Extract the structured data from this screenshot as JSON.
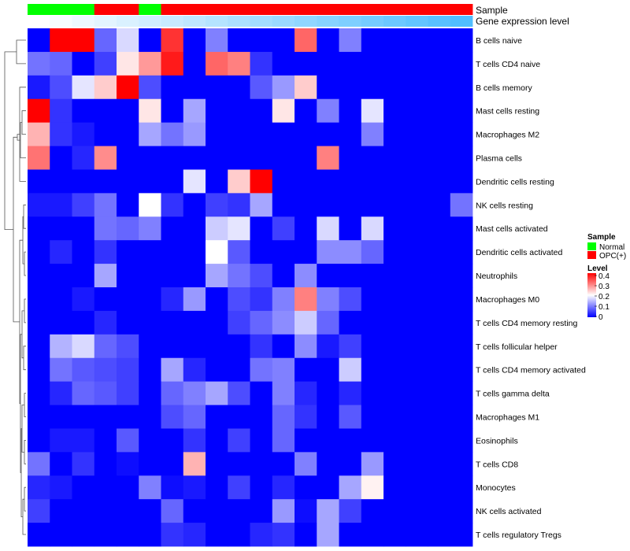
{
  "chart_data": {
    "type": "heatmap",
    "title": "",
    "annotation_rows": [
      {
        "label": "Sample",
        "values": [
          "Normal",
          "Normal",
          "Normal",
          "OPC(+)",
          "OPC(+)",
          "Normal",
          "OPC(+)",
          "OPC(+)",
          "OPC(+)",
          "OPC(+)",
          "OPC(+)",
          "OPC(+)",
          "OPC(+)",
          "OPC(+)",
          "OPC(+)",
          "OPC(+)",
          "OPC(+)",
          "OPC(+)",
          "OPC(+)",
          "OPC(+)"
        ]
      },
      {
        "label": "Gene expression level",
        "gradient": true
      }
    ],
    "rows": [
      "B cells naive",
      "T cells CD4 naive",
      "B cells memory",
      "Mast cells resting",
      "Macrophages M2",
      "Plasma cells",
      "Dendritic cells resting",
      "NK cells resting",
      "Mast cells activated",
      "Dendritic cells activated",
      "Neutrophils",
      "Macrophages M0",
      "T cells CD4 memory resting",
      "T cells follicular helper",
      "T cells CD4 memory activated",
      "T cells gamma delta",
      "Macrophages M1",
      "Eosinophils",
      "T cells CD8",
      "Monocytes",
      "NK cells activated",
      "T cells regulatory  Tregs"
    ],
    "n_columns": 20,
    "values": [
      [
        0.0,
        0.4,
        0.4,
        0.08,
        0.17,
        0.0,
        0.36,
        0.0,
        0.1,
        0.0,
        0.0,
        0.0,
        0.32,
        0.0,
        0.1,
        0.0,
        0.0,
        0.0,
        0.0,
        0.0
      ],
      [
        0.09,
        0.08,
        0.0,
        0.05,
        0.22,
        0.28,
        0.38,
        0.0,
        0.32,
        0.3,
        0.04,
        0.0,
        0.0,
        0.0,
        0.0,
        0.0,
        0.0,
        0.0,
        0.0,
        0.0
      ],
      [
        0.02,
        0.06,
        0.18,
        0.24,
        0.4,
        0.06,
        0.0,
        0.0,
        0.0,
        0.0,
        0.07,
        0.12,
        0.24,
        0.0,
        0.0,
        0.0,
        0.0,
        0.0,
        0.0,
        0.0
      ],
      [
        0.4,
        0.04,
        0.0,
        0.0,
        0.0,
        0.22,
        0.0,
        0.13,
        0.0,
        0.0,
        0.0,
        0.22,
        0.0,
        0.1,
        0.0,
        0.18,
        0.0,
        0.0,
        0.0,
        0.0
      ],
      [
        0.26,
        0.04,
        0.02,
        0.0,
        0.0,
        0.13,
        0.09,
        0.12,
        0.0,
        0.0,
        0.0,
        0.0,
        0.0,
        0.0,
        0.0,
        0.1,
        0.0,
        0.0,
        0.0,
        0.0
      ],
      [
        0.31,
        0.0,
        0.03,
        0.29,
        0.0,
        0.0,
        0.0,
        0.0,
        0.0,
        0.0,
        0.0,
        0.0,
        0.0,
        0.3,
        0.0,
        0.0,
        0.0,
        0.0,
        0.0,
        0.0
      ],
      [
        0.0,
        0.0,
        0.0,
        0.0,
        0.0,
        0.0,
        0.0,
        0.18,
        0.0,
        0.24,
        0.4,
        0.0,
        0.0,
        0.0,
        0.0,
        0.0,
        0.0,
        0.0,
        0.0,
        0.0
      ],
      [
        0.02,
        0.02,
        0.05,
        0.09,
        0.0,
        0.2,
        0.04,
        0.0,
        0.05,
        0.04,
        0.13,
        0.0,
        0.0,
        0.0,
        0.0,
        0.0,
        0.0,
        0.0,
        0.0,
        0.09
      ],
      [
        0.0,
        0.0,
        0.0,
        0.09,
        0.08,
        0.1,
        0.0,
        0.0,
        0.16,
        0.18,
        0.0,
        0.05,
        0.0,
        0.17,
        0.0,
        0.17,
        0.0,
        0.0,
        0.0,
        0.0
      ],
      [
        0.0,
        0.03,
        0.0,
        0.04,
        0.0,
        0.0,
        0.0,
        0.0,
        0.2,
        0.07,
        0.0,
        0.0,
        0.0,
        0.11,
        0.11,
        0.08,
        0.0,
        0.0,
        0.0,
        0.0
      ],
      [
        0.0,
        0.0,
        0.0,
        0.13,
        0.0,
        0.0,
        0.0,
        0.0,
        0.13,
        0.09,
        0.06,
        0.0,
        0.11,
        0.0,
        0.0,
        0.0,
        0.0,
        0.0,
        0.0,
        0.0
      ],
      [
        0.0,
        0.0,
        0.02,
        0.0,
        0.0,
        0.0,
        0.03,
        0.12,
        0.0,
        0.06,
        0.04,
        0.1,
        0.3,
        0.1,
        0.06,
        0.0,
        0.0,
        0.0,
        0.0,
        0.0
      ],
      [
        0.0,
        0.0,
        0.0,
        0.03,
        0.0,
        0.0,
        0.0,
        0.0,
        0.0,
        0.05,
        0.08,
        0.11,
        0.16,
        0.08,
        0.0,
        0.0,
        0.0,
        0.0,
        0.0,
        0.0
      ],
      [
        0.0,
        0.14,
        0.17,
        0.08,
        0.06,
        0.0,
        0.0,
        0.0,
        0.0,
        0.0,
        0.04,
        0.0,
        0.11,
        0.02,
        0.05,
        0.0,
        0.0,
        0.0,
        0.0,
        0.0
      ],
      [
        0.0,
        0.09,
        0.07,
        0.06,
        0.05,
        0.0,
        0.13,
        0.03,
        0.0,
        0.0,
        0.09,
        0.1,
        0.0,
        0.0,
        0.16,
        0.0,
        0.0,
        0.0,
        0.0,
        0.0
      ],
      [
        0.0,
        0.03,
        0.08,
        0.07,
        0.05,
        0.0,
        0.08,
        0.1,
        0.13,
        0.06,
        0.0,
        0.1,
        0.03,
        0.0,
        0.03,
        0.0,
        0.0,
        0.0,
        0.0,
        0.0
      ],
      [
        0.0,
        0.0,
        0.0,
        0.0,
        0.0,
        0.0,
        0.06,
        0.08,
        0.0,
        0.0,
        0.0,
        0.08,
        0.04,
        0.0,
        0.07,
        0.0,
        0.0,
        0.0,
        0.0,
        0.0
      ],
      [
        0.0,
        0.02,
        0.02,
        0.0,
        0.07,
        0.0,
        0.0,
        0.04,
        0.0,
        0.05,
        0.0,
        0.08,
        0.0,
        0.0,
        0.0,
        0.0,
        0.0,
        0.0,
        0.0,
        0.0
      ],
      [
        0.09,
        0.0,
        0.04,
        0.0,
        0.01,
        0.0,
        0.0,
        0.26,
        0.0,
        0.0,
        0.0,
        0.0,
        0.1,
        0.0,
        0.0,
        0.12,
        0.0,
        0.0,
        0.0,
        0.0
      ],
      [
        0.03,
        0.02,
        0.0,
        0.0,
        0.0,
        0.1,
        0.01,
        0.02,
        0.0,
        0.05,
        0.0,
        0.03,
        0.0,
        0.0,
        0.13,
        0.21,
        0.0,
        0.0,
        0.0,
        0.0
      ],
      [
        0.05,
        0.0,
        0.0,
        0.0,
        0.0,
        0.0,
        0.08,
        0.0,
        0.0,
        0.0,
        0.0,
        0.12,
        0.01,
        0.13,
        0.05,
        0.0,
        0.0,
        0.0,
        0.0,
        0.0
      ],
      [
        0.0,
        0.0,
        0.0,
        0.0,
        0.0,
        0.0,
        0.04,
        0.03,
        0.0,
        0.0,
        0.03,
        0.04,
        0.0,
        0.13,
        0.0,
        0.0,
        0.0,
        0.0,
        0.0,
        0.0
      ]
    ],
    "legend": {
      "sample_title": "Sample",
      "sample_items": [
        {
          "label": "Normal",
          "color": "#00ff00"
        },
        {
          "label": "OPC(+)",
          "color": "#ff0000"
        }
      ],
      "level_title": "Level",
      "level_ticks": [
        "0.4",
        "0.3",
        "0.2",
        "0.1",
        "0"
      ],
      "range": [
        0,
        0.4
      ]
    },
    "colors": {
      "low": "#0000ff",
      "mid": "#ffffff",
      "high": "#ff0000",
      "mid_value": 0.2
    }
  }
}
